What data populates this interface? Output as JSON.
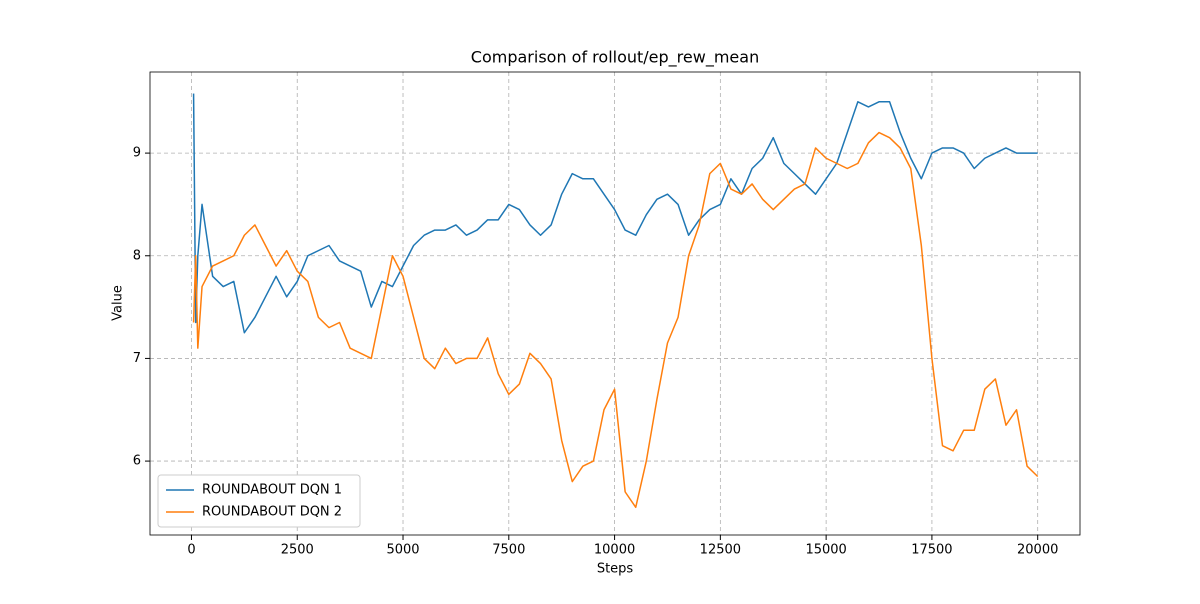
{
  "chart_data": {
    "type": "line",
    "title": "Comparison of rollout/ep_rew_mean",
    "xlabel": "Steps",
    "ylabel": "Value",
    "x": [
      50,
      100,
      150,
      250,
      500,
      750,
      1000,
      1250,
      1500,
      1750,
      2000,
      2250,
      2500,
      2750,
      3000,
      3250,
      3500,
      3750,
      4000,
      4250,
      4500,
      4750,
      5000,
      5250,
      5500,
      5750,
      6000,
      6250,
      6500,
      6750,
      7000,
      7250,
      7500,
      7750,
      8000,
      8250,
      8500,
      8750,
      9000,
      9250,
      9500,
      9750,
      10000,
      10250,
      10500,
      10750,
      11000,
      11250,
      11500,
      11750,
      12000,
      12250,
      12500,
      12750,
      13000,
      13250,
      13500,
      13750,
      14000,
      14250,
      14500,
      14750,
      15000,
      15250,
      15500,
      15750,
      16000,
      16250,
      16500,
      16750,
      17000,
      17250,
      17500,
      17750,
      18000,
      18250,
      18500,
      18750,
      19000,
      19250,
      19500,
      19750,
      20000
    ],
    "series": [
      {
        "name": "ROUNDABOUT DQN 1",
        "color": "#1f77b4",
        "values": [
          9.58,
          7.35,
          8.0,
          8.5,
          7.8,
          7.7,
          7.75,
          7.25,
          7.4,
          7.6,
          7.8,
          7.6,
          7.75,
          8.0,
          8.05,
          8.1,
          7.95,
          7.9,
          7.85,
          7.5,
          7.75,
          7.7,
          7.9,
          8.1,
          8.2,
          8.25,
          8.25,
          8.3,
          8.2,
          8.25,
          8.35,
          8.35,
          8.5,
          8.45,
          8.3,
          8.2,
          8.3,
          8.6,
          8.8,
          8.75,
          8.75,
          8.6,
          8.45,
          8.25,
          8.2,
          8.4,
          8.55,
          8.6,
          8.5,
          8.2,
          8.35,
          8.45,
          8.5,
          8.75,
          8.6,
          8.85,
          8.95,
          9.15,
          8.9,
          8.8,
          8.7,
          8.6,
          8.75,
          8.9,
          9.2,
          9.5,
          9.45,
          9.5,
          9.5,
          9.2,
          8.95,
          8.75,
          9.0,
          9.05,
          9.05,
          9.0,
          8.85,
          8.95,
          9.0,
          9.05,
          9.0,
          9.0,
          9.0
        ]
      },
      {
        "name": "ROUNDABOUT DQN 2",
        "color": "#ff7f0e",
        "values": [
          7.35,
          8.0,
          7.1,
          7.7,
          7.9,
          7.95,
          8.0,
          8.2,
          8.3,
          8.1,
          7.9,
          8.05,
          7.85,
          7.75,
          7.4,
          7.3,
          7.35,
          7.1,
          7.05,
          7.0,
          7.5,
          8.0,
          7.8,
          7.4,
          7.0,
          6.9,
          7.1,
          6.95,
          7.0,
          7.0,
          7.2,
          6.85,
          6.65,
          6.75,
          7.05,
          6.95,
          6.8,
          6.2,
          5.8,
          5.95,
          6.0,
          6.5,
          6.7,
          5.7,
          5.55,
          6.0,
          6.6,
          7.15,
          7.4,
          8.0,
          8.3,
          8.8,
          8.9,
          8.65,
          8.6,
          8.7,
          8.55,
          8.45,
          8.55,
          8.65,
          8.7,
          9.05,
          8.95,
          8.9,
          8.85,
          8.9,
          9.1,
          9.2,
          9.15,
          9.05,
          8.85,
          8.1,
          7.0,
          6.15,
          6.1,
          6.3,
          6.3,
          6.7,
          6.8,
          6.35,
          6.5,
          5.95,
          5.85
        ]
      }
    ],
    "xlim": [
      -980,
      21000
    ],
    "xticks": [
      0,
      2500,
      5000,
      7500,
      10000,
      12500,
      15000,
      17500,
      20000
    ],
    "ylim": [
      5.28,
      9.79
    ],
    "yticks": [
      6,
      7,
      8,
      9
    ],
    "grid": true,
    "legend": "lower left"
  }
}
